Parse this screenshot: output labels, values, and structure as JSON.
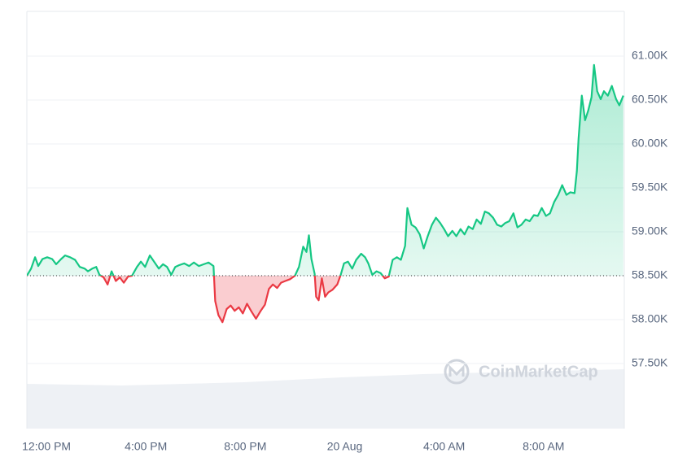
{
  "chart_data": {
    "type": "line",
    "watermark": "CoinMarketCap",
    "baseline": 58500,
    "colors": {
      "up": "#16c784",
      "down": "#ea3943"
    },
    "grid": true,
    "xlim": [
      -0.79,
      23.25
    ],
    "xticks": [
      {
        "value": 0,
        "label": "12:00 PM"
      },
      {
        "value": 4,
        "label": "4:00 PM"
      },
      {
        "value": 8,
        "label": "8:00 PM"
      },
      {
        "value": 12,
        "label": "20 Aug"
      },
      {
        "value": 16,
        "label": "4:00 AM"
      },
      {
        "value": 20,
        "label": "8:00 AM"
      }
    ],
    "ylim": [
      56759,
      61509
    ],
    "yticks": [
      {
        "value": 57500,
        "label": "57.50K"
      },
      {
        "value": 58000,
        "label": "58.00K"
      },
      {
        "value": 58500,
        "label": "58.50K"
      },
      {
        "value": 59000,
        "label": "59.00K"
      },
      {
        "value": 59500,
        "label": "59.50K"
      },
      {
        "value": 60000,
        "label": "60.00K"
      },
      {
        "value": 60500,
        "label": "60.50K"
      },
      {
        "value": 61000,
        "label": "61.00K"
      }
    ],
    "x": [
      -0.79,
      -0.62,
      -0.46,
      -0.33,
      -0.16,
      0.03,
      0.23,
      0.39,
      0.59,
      0.75,
      0.95,
      1.15,
      1.34,
      1.54,
      1.67,
      1.84,
      2.0,
      2.13,
      2.3,
      2.46,
      2.62,
      2.79,
      2.95,
      3.11,
      3.28,
      3.44,
      3.64,
      3.8,
      3.97,
      4.16,
      4.33,
      4.52,
      4.69,
      4.85,
      5.02,
      5.18,
      5.34,
      5.54,
      5.74,
      5.93,
      6.13,
      6.33,
      6.52,
      6.72,
      6.79,
      6.92,
      7.08,
      7.25,
      7.41,
      7.57,
      7.74,
      7.9,
      8.07,
      8.23,
      8.43,
      8.62,
      8.79,
      8.95,
      9.11,
      9.28,
      9.44,
      9.61,
      9.8,
      10.0,
      10.16,
      10.33,
      10.46,
      10.56,
      10.66,
      10.79,
      10.85,
      10.95,
      11.08,
      11.21,
      11.34,
      11.51,
      11.7,
      11.84,
      11.97,
      12.13,
      12.3,
      12.46,
      12.66,
      12.82,
      12.95,
      13.11,
      13.28,
      13.44,
      13.61,
      13.77,
      13.93,
      14.1,
      14.26,
      14.43,
      14.52,
      14.69,
      14.85,
      15.02,
      15.18,
      15.34,
      15.51,
      15.67,
      15.84,
      16.0,
      16.16,
      16.33,
      16.49,
      16.66,
      16.82,
      16.98,
      17.15,
      17.31,
      17.48,
      17.64,
      17.8,
      17.97,
      18.13,
      18.3,
      18.46,
      18.62,
      18.79,
      18.95,
      19.11,
      19.28,
      19.44,
      19.61,
      19.77,
      19.93,
      20.1,
      20.26,
      20.43,
      20.59,
      20.75,
      20.92,
      21.08,
      21.25,
      21.34,
      21.41,
      21.54,
      21.67,
      21.8,
      21.93,
      22.03,
      22.16,
      22.3,
      22.43,
      22.59,
      22.75,
      22.92,
      23.05,
      23.21
    ],
    "values": [
      58500,
      58580,
      58710,
      58610,
      58690,
      58710,
      58690,
      58630,
      58690,
      58730,
      58710,
      58680,
      58600,
      58580,
      58550,
      58580,
      58600,
      58510,
      58480,
      58400,
      58550,
      58440,
      58480,
      58420,
      58490,
      58500,
      58600,
      58660,
      58600,
      58730,
      58660,
      58580,
      58630,
      58600,
      58510,
      58600,
      58620,
      58640,
      58610,
      58650,
      58610,
      58630,
      58650,
      58610,
      58210,
      58050,
      57970,
      58120,
      58160,
      58100,
      58140,
      58070,
      58180,
      58100,
      58010,
      58100,
      58170,
      58350,
      58400,
      58360,
      58420,
      58440,
      58460,
      58500,
      58600,
      58830,
      58770,
      58960,
      58690,
      58520,
      58260,
      58220,
      58470,
      58260,
      58310,
      58340,
      58400,
      58510,
      58640,
      58660,
      58580,
      58680,
      58750,
      58710,
      58640,
      58510,
      58550,
      58530,
      58470,
      58490,
      58680,
      58710,
      58680,
      58840,
      59270,
      59080,
      59050,
      58970,
      58810,
      58950,
      59080,
      59160,
      59100,
      59030,
      58950,
      59010,
      58950,
      59030,
      58970,
      59060,
      59030,
      59140,
      59090,
      59230,
      59210,
      59160,
      59080,
      59060,
      59100,
      59120,
      59210,
      59050,
      59080,
      59140,
      59120,
      59190,
      59180,
      59270,
      59180,
      59210,
      59340,
      59420,
      59530,
      59420,
      59450,
      59440,
      59690,
      60060,
      60550,
      60270,
      60380,
      60530,
      60900,
      60600,
      60510,
      60600,
      60550,
      60660,
      60510,
      60440,
      60550
    ]
  }
}
